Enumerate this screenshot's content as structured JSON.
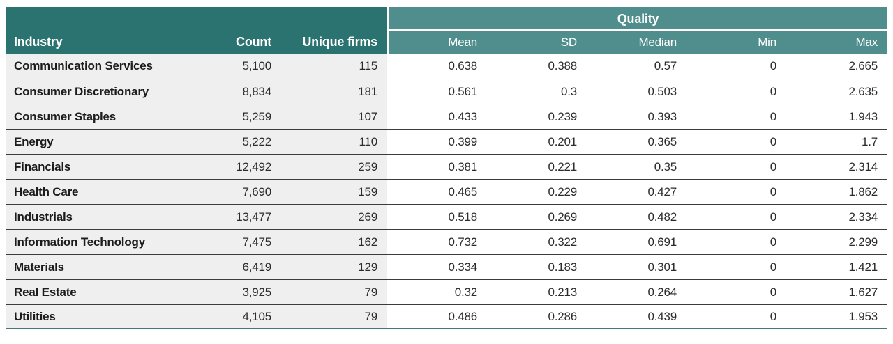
{
  "colors": {
    "header_dark_teal": "#2b7371",
    "header_light_teal": "#4f8e8c",
    "header_text": "#ffffff",
    "row_left_bg": "#efefef",
    "row_right_bg": "#ffffff",
    "row_separator": "#3c3c3c",
    "table_bottom_border": "#3f7a77",
    "body_text": "#1c1c1c"
  },
  "table": {
    "group_label": "Quality",
    "columns": {
      "industry": "Industry",
      "count": "Count",
      "unique_firms": "Unique firms",
      "mean": "Mean",
      "sd": "SD",
      "median": "Median",
      "min": "Min",
      "max": "Max"
    },
    "rows": [
      {
        "industry": "Communication Services",
        "count": "5,100",
        "unique_firms": "115",
        "mean": "0.638",
        "sd": "0.388",
        "median": "0.57",
        "min": "0",
        "max": "2.665"
      },
      {
        "industry": "Consumer Discretionary",
        "count": "8,834",
        "unique_firms": "181",
        "mean": "0.561",
        "sd": "0.3",
        "median": "0.503",
        "min": "0",
        "max": "2.635"
      },
      {
        "industry": "Consumer Staples",
        "count": "5,259",
        "unique_firms": "107",
        "mean": "0.433",
        "sd": "0.239",
        "median": "0.393",
        "min": "0",
        "max": "1.943"
      },
      {
        "industry": "Energy",
        "count": "5,222",
        "unique_firms": "110",
        "mean": "0.399",
        "sd": "0.201",
        "median": "0.365",
        "min": "0",
        "max": "1.7"
      },
      {
        "industry": "Financials",
        "count": "12,492",
        "unique_firms": "259",
        "mean": "0.381",
        "sd": "0.221",
        "median": "0.35",
        "min": "0",
        "max": "2.314"
      },
      {
        "industry": "Health Care",
        "count": "7,690",
        "unique_firms": "159",
        "mean": "0.465",
        "sd": "0.229",
        "median": "0.427",
        "min": "0",
        "max": "1.862"
      },
      {
        "industry": "Industrials",
        "count": "13,477",
        "unique_firms": "269",
        "mean": "0.518",
        "sd": "0.269",
        "median": "0.482",
        "min": "0",
        "max": "2.334"
      },
      {
        "industry": "Information Technology",
        "count": "7,475",
        "unique_firms": "162",
        "mean": "0.732",
        "sd": "0.322",
        "median": "0.691",
        "min": "0",
        "max": "2.299"
      },
      {
        "industry": "Materials",
        "count": "6,419",
        "unique_firms": "129",
        "mean": "0.334",
        "sd": "0.183",
        "median": "0.301",
        "min": "0",
        "max": "1.421"
      },
      {
        "industry": "Real Estate",
        "count": "3,925",
        "unique_firms": "79",
        "mean": "0.32",
        "sd": "0.213",
        "median": "0.264",
        "min": "0",
        "max": "1.627"
      },
      {
        "industry": "Utilities",
        "count": "4,105",
        "unique_firms": "79",
        "mean": "0.486",
        "sd": "0.286",
        "median": "0.439",
        "min": "0",
        "max": "1.953"
      }
    ]
  }
}
